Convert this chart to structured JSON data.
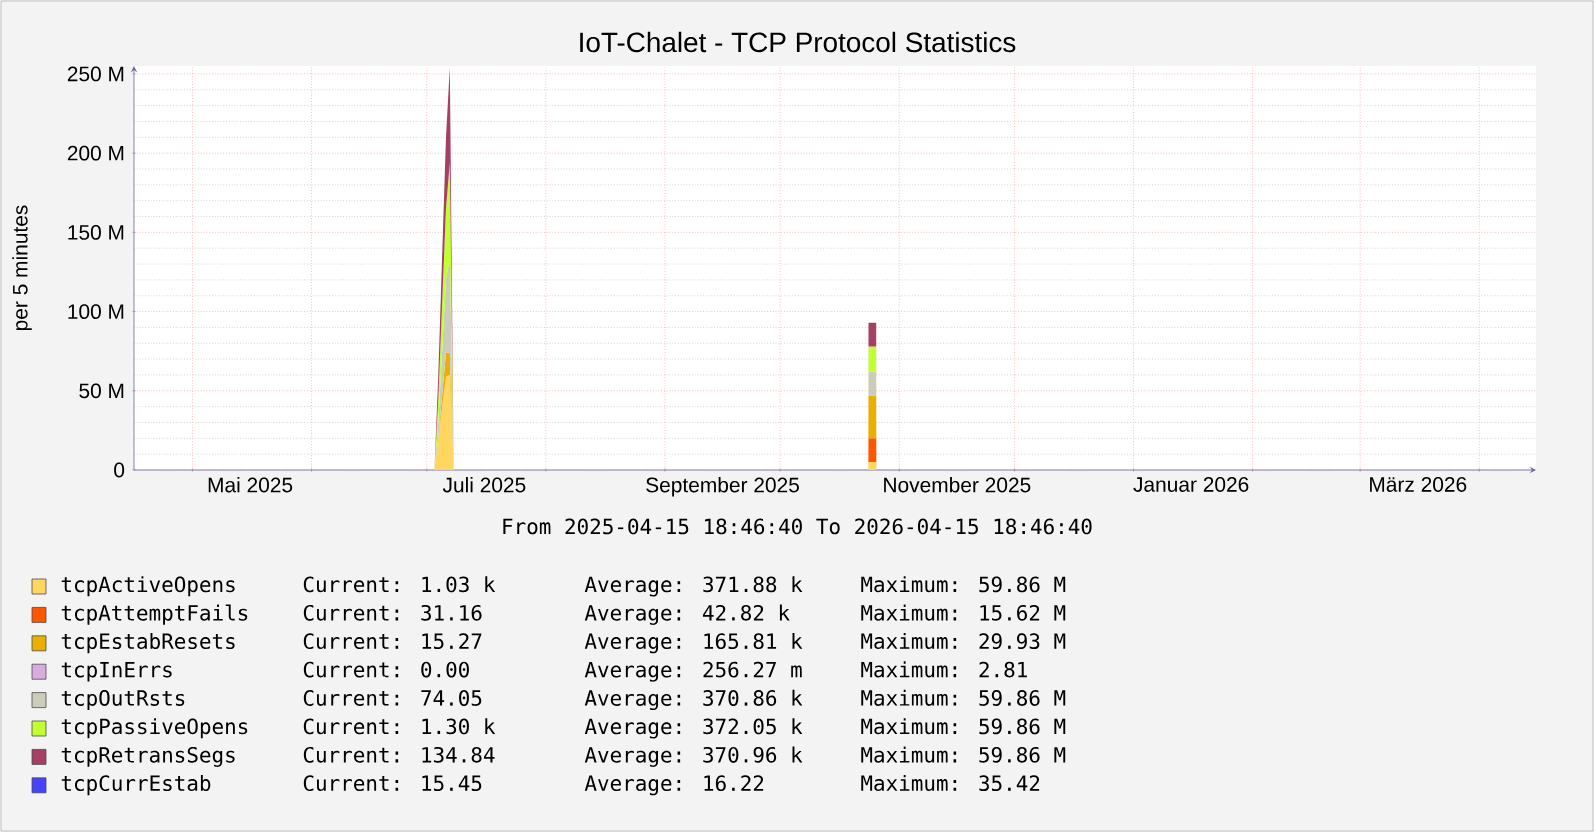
{
  "chart_data": {
    "type": "area",
    "title": "IoT-Chalet - TCP Protocol Statistics",
    "ylabel": "per 5 minutes",
    "stacked": true,
    "grid": true,
    "legend": "bottom",
    "xlim": [
      "2025-04-15T18:46",
      "2026-04-15T18:46"
    ],
    "xticks": [
      {
        "value": "2025-05-01",
        "label": null
      },
      {
        "value": "2025-05-16",
        "label": "Mai 2025"
      },
      {
        "value": "2025-06-01",
        "label": null
      },
      {
        "value": "2025-07-01",
        "label": null
      },
      {
        "value": "2025-07-16",
        "label": "Juli 2025"
      },
      {
        "value": "2025-08-01",
        "label": null
      },
      {
        "value": "2025-09-01",
        "label": null
      },
      {
        "value": "2025-09-16",
        "label": "September 2025"
      },
      {
        "value": "2025-10-01",
        "label": null
      },
      {
        "value": "2025-11-01",
        "label": null
      },
      {
        "value": "2025-11-16",
        "label": "November 2025"
      },
      {
        "value": "2025-12-01",
        "label": null
      },
      {
        "value": "2026-01-01",
        "label": null
      },
      {
        "value": "2026-01-16",
        "label": "Januar 2026"
      },
      {
        "value": "2026-02-01",
        "label": null
      },
      {
        "value": "2026-03-01",
        "label": null
      },
      {
        "value": "2026-03-16",
        "label": "März 2026"
      },
      {
        "value": "2026-04-01",
        "label": null
      }
    ],
    "ylim": [
      0,
      255000000
    ],
    "yticks": [
      {
        "value": 0,
        "label": "0"
      },
      {
        "value": 50000000,
        "label": "50 M"
      },
      {
        "value": 100000000,
        "label": "100 M"
      },
      {
        "value": 150000000,
        "label": "150 M"
      },
      {
        "value": 200000000,
        "label": "200 M"
      },
      {
        "value": 250000000,
        "label": "250 M"
      }
    ],
    "x": [
      "2025-04-15T18:46",
      "2025-07-03",
      "2025-07-04",
      "2025-07-06",
      "2025-07-07",
      "2025-07-08",
      "2025-10-23T23:00",
      "2025-10-24",
      "2025-10-26",
      "2025-10-26T01:00",
      "2026-04-15T18:46"
    ],
    "series": [
      {
        "name": "tcpActiveOpens",
        "color": "#ffd660",
        "values": [
          0,
          0,
          20000000,
          59000000,
          60000000,
          0,
          0,
          5000000,
          5000000,
          0,
          0
        ]
      },
      {
        "name": "tcpAttemptFails",
        "color": "#ff5700",
        "values": [
          null,
          null,
          null,
          null,
          null,
          null,
          0,
          15000000,
          15000000,
          0,
          null
        ]
      },
      {
        "name": "tcpEstabResets",
        "color": "#eaaf00",
        "values": [
          0,
          0,
          0,
          15000000,
          14000000,
          0,
          0,
          27000000,
          27000000,
          0,
          0
        ]
      },
      {
        "name": "tcpInErrs",
        "color": "#d8ace0",
        "values": [
          null,
          null,
          null,
          null,
          null,
          null,
          null,
          null,
          null,
          null,
          null
        ]
      },
      {
        "name": "tcpOutRsts",
        "color": "#ccccbb",
        "values": [
          0,
          0,
          10000000,
          46000000,
          60000000,
          0,
          0,
          15000000,
          15000000,
          0,
          0
        ]
      },
      {
        "name": "tcpPassiveOpens",
        "color": "#c0ff30",
        "values": [
          0,
          0,
          15000000,
          45000000,
          60000000,
          0,
          0,
          16000000,
          16000000,
          0,
          0
        ]
      },
      {
        "name": "tcpRetransSegs",
        "color": "#a53f64",
        "values": [
          0,
          0,
          15000000,
          45000000,
          60000000,
          0,
          0,
          15000000,
          15000000,
          0,
          0
        ]
      },
      {
        "name": "tcpCurrEstab",
        "color": "#4444ff",
        "values": [
          null,
          null,
          null,
          null,
          null,
          null,
          null,
          null,
          null,
          null,
          null
        ]
      }
    ],
    "annotations": [
      "From 2025-04-15 18:46:40 To 2026-04-15 18:46:40",
      "Current: 1.03 k",
      "Average: 371.88 k",
      "Maximum: 59.86 M",
      "Current: 31.16",
      "Average: 42.82 k",
      "Maximum: 15.62 M",
      "Current: 15.27",
      "Average: 165.81 k",
      "Maximum: 29.93 M",
      "Current: 0.00",
      "Average: 256.27 m",
      "Maximum: 2.81",
      "Current: 74.05",
      "Average: 370.86 k",
      "Maximum: 59.86 M",
      "Current: 1.30 k",
      "Average: 372.05 k",
      "Maximum: 59.86 M",
      "Current: 134.84",
      "Average: 370.96 k",
      "Maximum: 59.86 M",
      "Current: 15.45",
      "Average: 16.22",
      "Maximum: 35.42"
    ]
  }
}
